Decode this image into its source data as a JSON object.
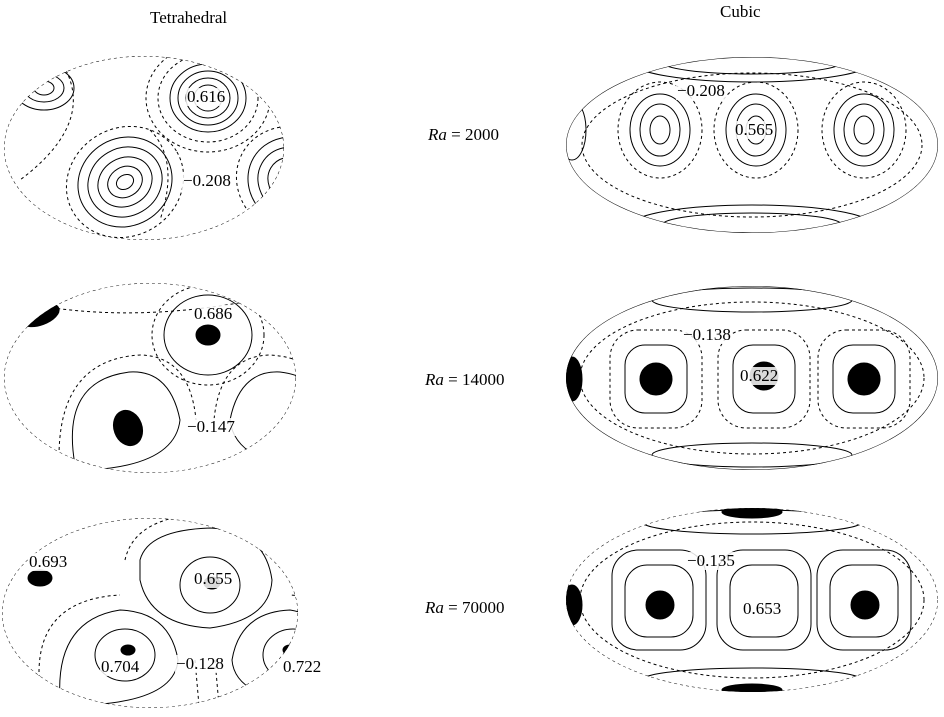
{
  "columns": {
    "left": "Tetrahedral",
    "right": "Cubic"
  },
  "rows": [
    {
      "ra_label": "Ra",
      "ra_eq": " = 2000",
      "tet": {
        "max": "0.616",
        "min": "−0.208"
      },
      "cub": {
        "max": "0.565",
        "min": "−0.208"
      }
    },
    {
      "ra_label": "Ra",
      "ra_eq": " = 14000",
      "tet": {
        "max": "0.686",
        "min": "−0.147"
      },
      "cub": {
        "max": "0.622",
        "min": "−0.138"
      }
    },
    {
      "ra_label": "Ra",
      "ra_eq": " = 70000",
      "tet": {
        "max": "0.655",
        "min": "−0.128",
        "extra": [
          "0.693",
          "0.704",
          "0.722"
        ]
      },
      "cub": {
        "max": "0.653",
        "min": "−0.135"
      }
    }
  ]
}
